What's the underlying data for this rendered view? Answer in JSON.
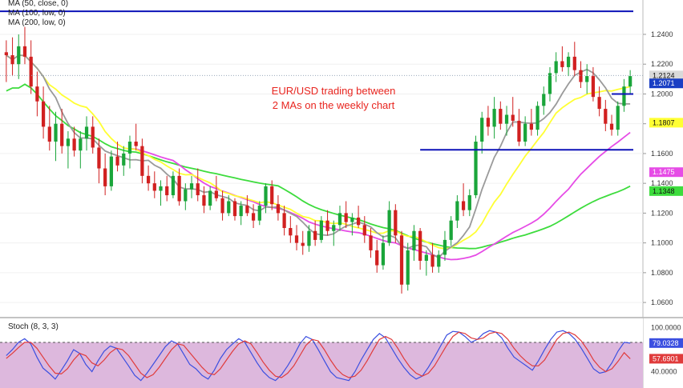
{
  "chart_data": [
    {
      "type": "candlestick",
      "indicator_labels": [
        "MA (50, close, 0)",
        "MA (100, low, 0)",
        "MA (200, low, 0)"
      ],
      "annotation": [
        "EUR/USD trading between",
        "2 MAs on the weekly chart"
      ],
      "y_ticks": [
        "1.2400",
        "1.2200",
        "1.2000",
        "1.1800",
        "1.1600",
        "1.1400",
        "1.1200",
        "1.1000",
        "1.0800",
        "1.0600"
      ],
      "y_tick_values": [
        1.24,
        1.22,
        1.2,
        1.18,
        1.16,
        1.14,
        1.12,
        1.1,
        1.08,
        1.06
      ],
      "ylim": [
        1.052,
        1.262
      ],
      "price_tags": [
        {
          "text": "1.2124",
          "value": 1.2124,
          "color": "#d9d9d9",
          "text_color": "#111111"
        },
        {
          "text": "1.2071",
          "value": 1.2071,
          "color": "#1a3fc4",
          "text_color": "#ffffff"
        },
        {
          "text": "1.1807",
          "value": 1.1807,
          "color": "#ffff33",
          "text_color": "#111111"
        },
        {
          "text": "1.1475",
          "value": 1.1475,
          "color": "#e64ce6",
          "text_color": "#ffffff"
        },
        {
          "text": "1.1348",
          "value": 1.1348,
          "color": "#3ddc3d",
          "text_color": "#111111"
        }
      ],
      "colors": {
        "up": "#1aa53a",
        "down": "#d12020",
        "ma50": "#ffff33",
        "ma100": "#e64ce6",
        "ma200": "#3ddc3d",
        "ma_gray": "#9a9a9a",
        "level_lines": "#0c12b8"
      },
      "horizontal_levels": [
        {
          "value": 1.2555,
          "from_candle": 0,
          "to_candle": 120
        },
        {
          "value": 1.2,
          "from_candle": 98,
          "to_candle": 130
        },
        {
          "value": 1.1625,
          "from_candle": 67,
          "to_candle": 130
        }
      ],
      "ohlc": [
        [
          1.228,
          1.236,
          1.208,
          1.226
        ],
        [
          1.226,
          1.238,
          1.212,
          1.22
        ],
        [
          1.22,
          1.24,
          1.21,
          1.232
        ],
        [
          1.232,
          1.245,
          1.22,
          1.225
        ],
        [
          1.225,
          1.236,
          1.2,
          1.205
        ],
        [
          1.205,
          1.215,
          1.185,
          1.195
        ],
        [
          1.195,
          1.205,
          1.17,
          1.178
        ],
        [
          1.178,
          1.192,
          1.162,
          1.168
        ],
        [
          1.168,
          1.188,
          1.155,
          1.18
        ],
        [
          1.18,
          1.19,
          1.16,
          1.165
        ],
        [
          1.165,
          1.175,
          1.15,
          1.17
        ],
        [
          1.17,
          1.178,
          1.158,
          1.162
        ],
        [
          1.162,
          1.175,
          1.15,
          1.17
        ],
        [
          1.17,
          1.185,
          1.162,
          1.178
        ],
        [
          1.178,
          1.185,
          1.16,
          1.164
        ],
        [
          1.164,
          1.17,
          1.14,
          1.15
        ],
        [
          1.15,
          1.16,
          1.132,
          1.138
        ],
        [
          1.138,
          1.162,
          1.135,
          1.158
        ],
        [
          1.158,
          1.168,
          1.148,
          1.152
        ],
        [
          1.152,
          1.165,
          1.145,
          1.16
        ],
        [
          1.16,
          1.172,
          1.15,
          1.168
        ],
        [
          1.168,
          1.18,
          1.162,
          1.165
        ],
        [
          1.165,
          1.17,
          1.14,
          1.145
        ],
        [
          1.145,
          1.152,
          1.135,
          1.14
        ],
        [
          1.14,
          1.148,
          1.13,
          1.135
        ],
        [
          1.135,
          1.142,
          1.125,
          1.138
        ],
        [
          1.138,
          1.145,
          1.128,
          1.132
        ],
        [
          1.132,
          1.148,
          1.13,
          1.145
        ],
        [
          1.145,
          1.15,
          1.125,
          1.128
        ],
        [
          1.128,
          1.14,
          1.122,
          1.136
        ],
        [
          1.136,
          1.145,
          1.13,
          1.14
        ],
        [
          1.14,
          1.15,
          1.128,
          1.132
        ],
        [
          1.132,
          1.138,
          1.12,
          1.125
        ],
        [
          1.125,
          1.138,
          1.122,
          1.135
        ],
        [
          1.135,
          1.145,
          1.128,
          1.13
        ],
        [
          1.13,
          1.135,
          1.115,
          1.12
        ],
        [
          1.12,
          1.132,
          1.118,
          1.128
        ],
        [
          1.128,
          1.13,
          1.115,
          1.118
        ],
        [
          1.118,
          1.128,
          1.112,
          1.125
        ],
        [
          1.125,
          1.132,
          1.118,
          1.12
        ],
        [
          1.12,
          1.126,
          1.11,
          1.115
        ],
        [
          1.115,
          1.128,
          1.112,
          1.125
        ],
        [
          1.125,
          1.14,
          1.12,
          1.138
        ],
        [
          1.138,
          1.142,
          1.122,
          1.126
        ],
        [
          1.126,
          1.132,
          1.115,
          1.12
        ],
        [
          1.12,
          1.125,
          1.105,
          1.11
        ],
        [
          1.11,
          1.118,
          1.1,
          1.105
        ],
        [
          1.105,
          1.112,
          1.095,
          1.1
        ],
        [
          1.1,
          1.108,
          1.092,
          1.098
        ],
        [
          1.098,
          1.112,
          1.094,
          1.108
        ],
        [
          1.108,
          1.115,
          1.098,
          1.102
        ],
        [
          1.102,
          1.118,
          1.1,
          1.115
        ],
        [
          1.115,
          1.122,
          1.105,
          1.108
        ],
        [
          1.108,
          1.115,
          1.098,
          1.112
        ],
        [
          1.112,
          1.125,
          1.108,
          1.12
        ],
        [
          1.12,
          1.128,
          1.11,
          1.114
        ],
        [
          1.114,
          1.12,
          1.105,
          1.117
        ],
        [
          1.117,
          1.125,
          1.11,
          1.112
        ],
        [
          1.112,
          1.118,
          1.1,
          1.105
        ],
        [
          1.105,
          1.11,
          1.09,
          1.095
        ],
        [
          1.095,
          1.102,
          1.08,
          1.085
        ],
        [
          1.085,
          1.105,
          1.082,
          1.1
        ],
        [
          1.1,
          1.128,
          1.098,
          1.122
        ],
        [
          1.122,
          1.126,
          1.1,
          1.105
        ],
        [
          1.105,
          1.108,
          1.066,
          1.072
        ],
        [
          1.072,
          1.1,
          1.068,
          1.095
        ],
        [
          1.095,
          1.112,
          1.088,
          1.108
        ],
        [
          1.108,
          1.11,
          1.082,
          1.088
        ],
        [
          1.088,
          1.095,
          1.078,
          1.092
        ],
        [
          1.092,
          1.1,
          1.08,
          1.084
        ],
        [
          1.084,
          1.095,
          1.08,
          1.092
        ],
        [
          1.092,
          1.108,
          1.088,
          1.102
        ],
        [
          1.102,
          1.118,
          1.098,
          1.115
        ],
        [
          1.115,
          1.132,
          1.11,
          1.128
        ],
        [
          1.128,
          1.14,
          1.118,
          1.122
        ],
        [
          1.122,
          1.136,
          1.118,
          1.132
        ],
        [
          1.132,
          1.172,
          1.13,
          1.168
        ],
        [
          1.168,
          1.188,
          1.16,
          1.184
        ],
        [
          1.184,
          1.192,
          1.172,
          1.178
        ],
        [
          1.178,
          1.198,
          1.17,
          1.19
        ],
        [
          1.19,
          1.195,
          1.176,
          1.18
        ],
        [
          1.18,
          1.192,
          1.172,
          1.186
        ],
        [
          1.186,
          1.198,
          1.178,
          1.182
        ],
        [
          1.182,
          1.19,
          1.165,
          1.168
        ],
        [
          1.168,
          1.185,
          1.165,
          1.18
        ],
        [
          1.18,
          1.19,
          1.172,
          1.176
        ],
        [
          1.176,
          1.195,
          1.172,
          1.192
        ],
        [
          1.192,
          1.205,
          1.186,
          1.2
        ],
        [
          1.2,
          1.218,
          1.195,
          1.214
        ],
        [
          1.214,
          1.228,
          1.208,
          1.222
        ],
        [
          1.222,
          1.232,
          1.215,
          1.218
        ],
        [
          1.218,
          1.228,
          1.212,
          1.225
        ],
        [
          1.225,
          1.235,
          1.212,
          1.216
        ],
        [
          1.216,
          1.222,
          1.204,
          1.208
        ],
        [
          1.208,
          1.22,
          1.2,
          1.212
        ],
        [
          1.212,
          1.218,
          1.195,
          1.198
        ],
        [
          1.198,
          1.205,
          1.185,
          1.19
        ],
        [
          1.19,
          1.196,
          1.175,
          1.18
        ],
        [
          1.18,
          1.186,
          1.172,
          1.176
        ],
        [
          1.176,
          1.195,
          1.172,
          1.192
        ],
        [
          1.192,
          1.21,
          1.188,
          1.205
        ],
        [
          1.205,
          1.216,
          1.2,
          1.212
        ]
      ]
    },
    {
      "type": "line",
      "title": "Stoch (8, 3, 3)",
      "y_ticks": [
        "100.0000",
        "40.0000"
      ],
      "y_tick_values": [
        100,
        40
      ],
      "ylim": [
        20,
        105
      ],
      "price_tags": [
        {
          "text": "79.0328",
          "value": 79.0328,
          "color": "#3b4fe0",
          "text_color": "#ffffff"
        },
        {
          "text": "57.6901",
          "value": 57.6901,
          "color": "#e03b3b",
          "text_color": "#ffffff"
        }
      ],
      "colors": {
        "k": "#3b4fe0",
        "d": "#e03b3b",
        "band": "#ddb8dd"
      },
      "series": [
        {
          "name": "%K",
          "values": [
            62,
            70,
            80,
            85,
            78,
            60,
            45,
            38,
            30,
            42,
            55,
            70,
            65,
            50,
            40,
            55,
            68,
            75,
            72,
            60,
            48,
            35,
            28,
            38,
            50,
            62,
            74,
            82,
            78,
            64,
            50,
            44,
            35,
            30,
            42,
            58,
            70,
            78,
            85,
            80,
            66,
            52,
            40,
            32,
            28,
            36,
            48,
            62,
            78,
            88,
            84,
            70,
            55,
            40,
            32,
            30,
            28,
            40,
            56,
            70,
            84,
            92,
            86,
            72,
            58,
            46,
            36,
            30,
            34,
            46,
            60,
            75,
            90,
            95,
            94,
            88,
            80,
            84,
            92,
            96,
            94,
            86,
            72,
            60,
            54,
            48,
            42,
            55,
            70,
            84,
            94,
            96,
            92,
            84,
            72,
            58,
            44,
            38,
            40,
            52,
            68,
            80,
            79
          ]
        },
        {
          "name": "%D",
          "values": [
            58,
            65,
            73,
            80,
            80,
            72,
            60,
            48,
            38,
            37,
            44,
            56,
            65,
            62,
            52,
            48,
            56,
            66,
            72,
            70,
            62,
            50,
            38,
            32,
            36,
            46,
            58,
            70,
            78,
            76,
            66,
            56,
            46,
            38,
            36,
            44,
            56,
            68,
            78,
            82,
            78,
            66,
            53,
            42,
            34,
            32,
            38,
            48,
            62,
            76,
            84,
            82,
            70,
            56,
            44,
            36,
            32,
            34,
            42,
            55,
            70,
            84,
            88,
            84,
            72,
            58,
            46,
            38,
            34,
            38,
            48,
            62,
            76,
            88,
            94,
            92,
            86,
            84,
            86,
            92,
            94,
            92,
            84,
            72,
            62,
            54,
            48,
            48,
            56,
            70,
            84,
            92,
            94,
            90,
            82,
            70,
            56,
            46,
            40,
            44,
            54,
            66,
            57.69
          ]
        }
      ],
      "bands": [
        20,
        80
      ]
    }
  ]
}
